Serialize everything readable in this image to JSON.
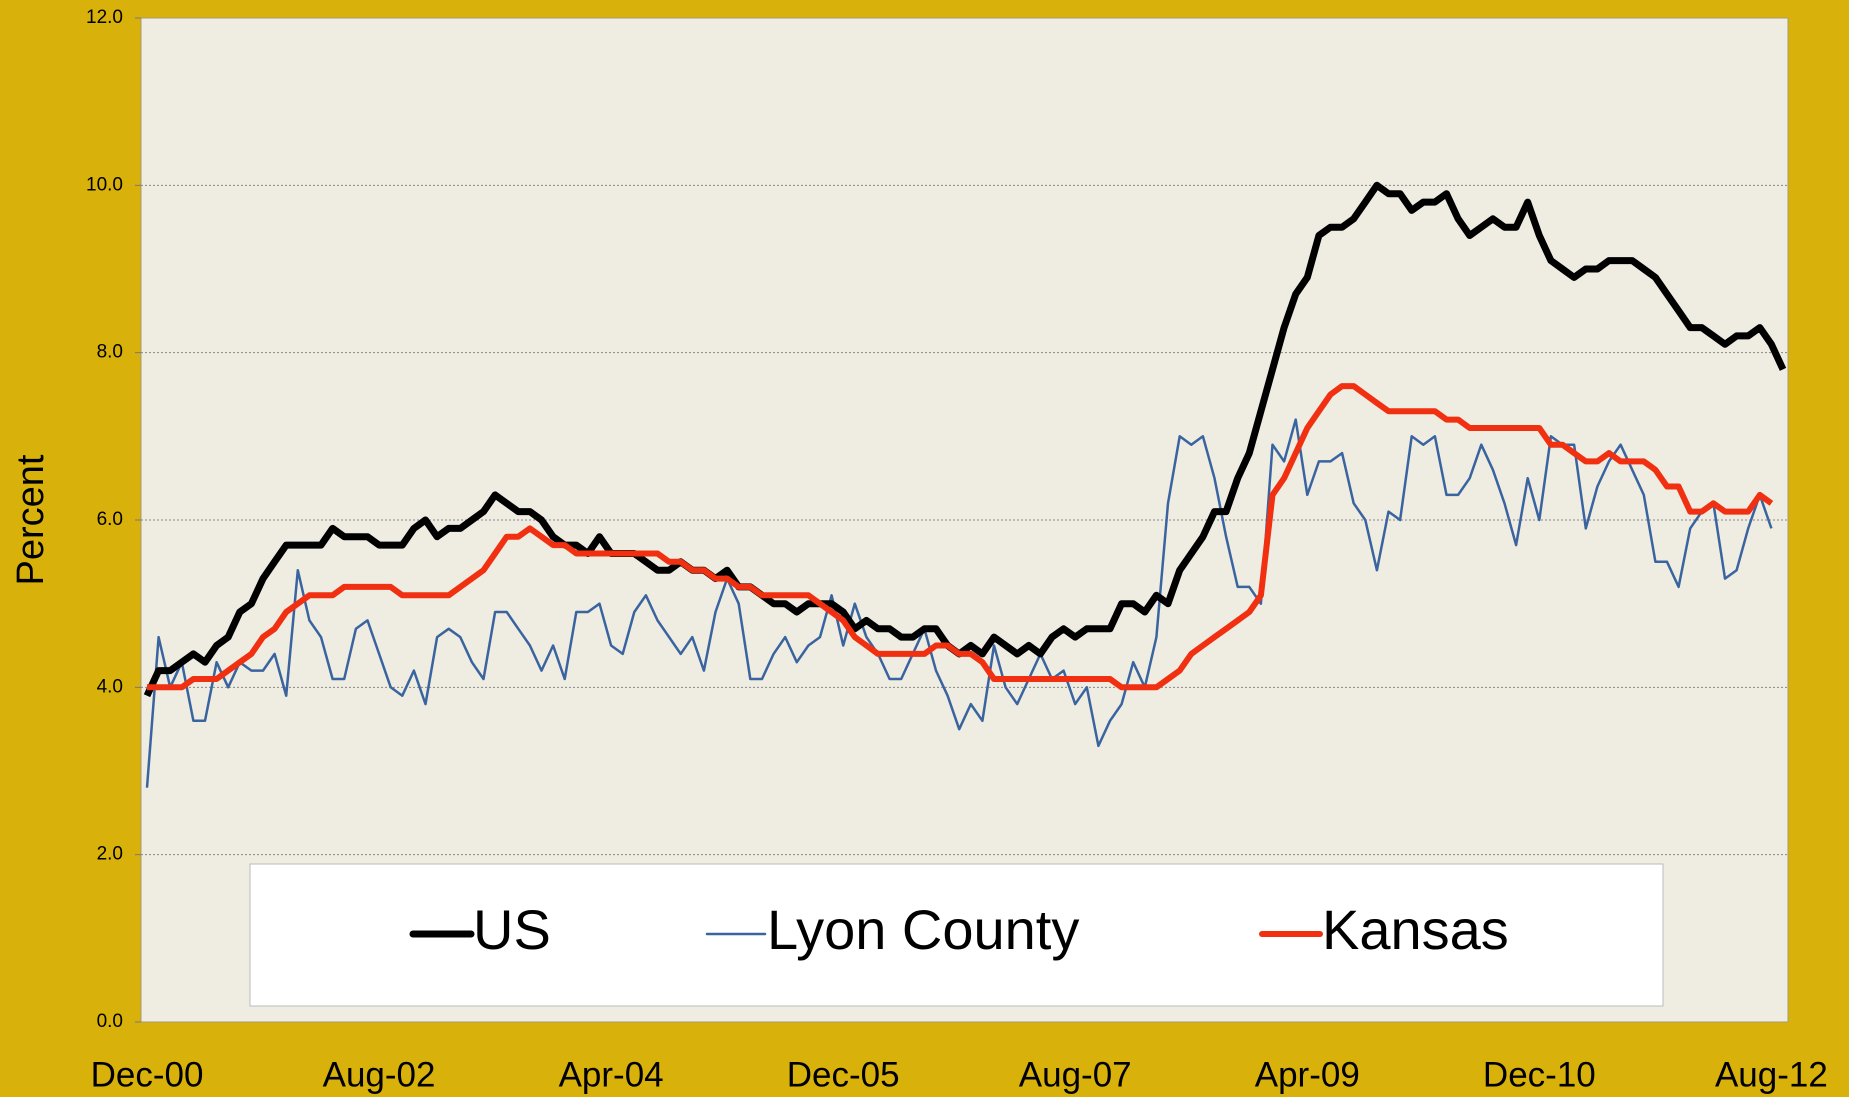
{
  "chart_data": {
    "type": "line",
    "ylabel": "Percent",
    "categories": [
      "Dec-00",
      null,
      null,
      null,
      null,
      null,
      null,
      null,
      null,
      null,
      null,
      null,
      null,
      null,
      null,
      null,
      null,
      null,
      null,
      null,
      "Aug-02",
      null,
      null,
      null,
      null,
      null,
      null,
      null,
      null,
      null,
      null,
      null,
      null,
      null,
      null,
      null,
      null,
      null,
      null,
      null,
      "Apr-04",
      null,
      null,
      null,
      null,
      null,
      null,
      null,
      null,
      null,
      null,
      null,
      null,
      null,
      null,
      null,
      null,
      null,
      null,
      null,
      "Dec-05",
      null,
      null,
      null,
      null,
      null,
      null,
      null,
      null,
      null,
      null,
      null,
      null,
      null,
      null,
      null,
      null,
      null,
      null,
      null,
      "Aug-07",
      null,
      null,
      null,
      null,
      null,
      null,
      null,
      null,
      null,
      null,
      null,
      null,
      null,
      null,
      null,
      null,
      null,
      null,
      null,
      "Apr-09",
      null,
      null,
      null,
      null,
      null,
      null,
      null,
      null,
      null,
      null,
      null,
      null,
      null,
      null,
      null,
      null,
      null,
      null,
      null,
      "Dec-10",
      null,
      null,
      null,
      null,
      null,
      null,
      null,
      null,
      null,
      null,
      null,
      null,
      null,
      null,
      null,
      null,
      null,
      null,
      null,
      "Aug-12",
      null
    ],
    "series": [
      {
        "name": "US",
        "color": "#000000",
        "width": 7,
        "values": [
          3.9,
          4.2,
          4.2,
          4.3,
          4.4,
          4.3,
          4.5,
          4.6,
          4.9,
          5.0,
          5.3,
          5.5,
          5.7,
          5.7,
          5.7,
          5.7,
          5.9,
          5.8,
          5.8,
          5.8,
          5.7,
          5.7,
          5.7,
          5.9,
          6.0,
          5.8,
          5.9,
          5.9,
          6.0,
          6.1,
          6.3,
          6.2,
          6.1,
          6.1,
          6.0,
          5.8,
          5.7,
          5.7,
          5.6,
          5.8,
          5.6,
          5.6,
          5.6,
          5.5,
          5.4,
          5.4,
          5.5,
          5.4,
          5.4,
          5.3,
          5.4,
          5.2,
          5.2,
          5.1,
          5.0,
          5.0,
          4.9,
          5.0,
          5.0,
          5.0,
          4.9,
          4.7,
          4.8,
          4.7,
          4.7,
          4.6,
          4.6,
          4.7,
          4.7,
          4.5,
          4.4,
          4.5,
          4.4,
          4.6,
          4.5,
          4.4,
          4.5,
          4.4,
          4.6,
          4.7,
          4.6,
          4.7,
          4.7,
          4.7,
          5.0,
          5.0,
          4.9,
          5.1,
          5.0,
          5.4,
          5.6,
          5.8,
          6.1,
          6.1,
          6.5,
          6.8,
          7.3,
          7.8,
          8.3,
          8.7,
          8.9,
          9.4,
          9.5,
          9.5,
          9.6,
          9.8,
          10.0,
          9.9,
          9.9,
          9.7,
          9.8,
          9.8,
          9.9,
          9.6,
          9.4,
          9.5,
          9.6,
          9.5,
          9.5,
          9.8,
          9.4,
          9.1,
          9.0,
          8.9,
          9.0,
          9.0,
          9.1,
          9.1,
          9.1,
          9.0,
          8.9,
          8.7,
          8.5,
          8.3,
          8.3,
          8.2,
          8.1,
          8.2,
          8.2,
          8.3,
          8.1,
          7.8
        ]
      },
      {
        "name": "Lyon County",
        "color": "#3a64a0",
        "width": 2.5,
        "values": [
          2.8,
          4.6,
          4.0,
          4.3,
          3.6,
          3.6,
          4.3,
          4.0,
          4.3,
          4.2,
          4.2,
          4.4,
          3.9,
          5.4,
          4.8,
          4.6,
          4.1,
          4.1,
          4.7,
          4.8,
          4.4,
          4.0,
          3.9,
          4.2,
          3.8,
          4.6,
          4.7,
          4.6,
          4.3,
          4.1,
          4.9,
          4.9,
          4.7,
          4.5,
          4.2,
          4.5,
          4.1,
          4.9,
          4.9,
          5.0,
          4.5,
          4.4,
          4.9,
          5.1,
          4.8,
          4.6,
          4.4,
          4.6,
          4.2,
          4.9,
          5.3,
          5.0,
          4.1,
          4.1,
          4.4,
          4.6,
          4.3,
          4.5,
          4.6,
          5.1,
          4.5,
          5.0,
          4.6,
          4.4,
          4.1,
          4.1,
          4.4,
          4.7,
          4.2,
          3.9,
          3.5,
          3.8,
          3.6,
          4.5,
          4.0,
          3.8,
          4.1,
          4.4,
          4.1,
          4.2,
          3.8,
          4.0,
          3.3,
          3.6,
          3.8,
          4.3,
          4.0,
          4.6,
          6.2,
          7.0,
          6.9,
          7.0,
          6.5,
          5.8,
          5.2,
          5.2,
          5.0,
          6.9,
          6.7,
          7.2,
          6.3,
          6.7,
          6.7,
          6.8,
          6.2,
          6.0,
          5.4,
          6.1,
          6.0,
          7.0,
          6.9,
          7.0,
          6.3,
          6.3,
          6.5,
          6.9,
          6.6,
          6.2,
          5.7,
          6.5,
          6.0,
          7.0,
          6.9,
          6.9,
          5.9,
          6.4,
          6.7,
          6.9,
          6.6,
          6.3,
          5.5,
          5.5,
          5.2,
          5.9,
          6.1,
          6.2,
          5.3,
          5.4,
          5.9,
          6.3,
          5.9,
          null
        ]
      },
      {
        "name": "Kansas",
        "color": "#f03010",
        "width": 6,
        "values": [
          4.0,
          4.0,
          4.0,
          4.0,
          4.1,
          4.1,
          4.1,
          4.2,
          4.3,
          4.4,
          4.6,
          4.7,
          4.9,
          5.0,
          5.1,
          5.1,
          5.1,
          5.2,
          5.2,
          5.2,
          5.2,
          5.2,
          5.1,
          5.1,
          5.1,
          5.1,
          5.1,
          5.2,
          5.3,
          5.4,
          5.6,
          5.8,
          5.8,
          5.9,
          5.8,
          5.7,
          5.7,
          5.6,
          5.6,
          5.6,
          5.6,
          5.6,
          5.6,
          5.6,
          5.6,
          5.5,
          5.5,
          5.4,
          5.4,
          5.3,
          5.3,
          5.2,
          5.2,
          5.1,
          5.1,
          5.1,
          5.1,
          5.1,
          5.0,
          4.9,
          4.8,
          4.6,
          4.5,
          4.4,
          4.4,
          4.4,
          4.4,
          4.4,
          4.5,
          4.5,
          4.4,
          4.4,
          4.3,
          4.1,
          4.1,
          4.1,
          4.1,
          4.1,
          4.1,
          4.1,
          4.1,
          4.1,
          4.1,
          4.1,
          4.0,
          4.0,
          4.0,
          4.0,
          4.1,
          4.2,
          4.4,
          4.5,
          4.6,
          4.7,
          4.8,
          4.9,
          5.1,
          6.3,
          6.5,
          6.8,
          7.1,
          7.3,
          7.5,
          7.6,
          7.6,
          7.5,
          7.4,
          7.3,
          7.3,
          7.3,
          7.3,
          7.3,
          7.2,
          7.2,
          7.1,
          7.1,
          7.1,
          7.1,
          7.1,
          7.1,
          7.1,
          6.9,
          6.9,
          6.8,
          6.7,
          6.7,
          6.8,
          6.7,
          6.7,
          6.7,
          6.6,
          6.4,
          6.4,
          6.1,
          6.1,
          6.2,
          6.1,
          6.1,
          6.1,
          6.3,
          6.2,
          null
        ]
      }
    ],
    "ylim": [
      0,
      12
    ],
    "yticks": [
      {
        "value": 0,
        "label": "0.0"
      },
      {
        "value": 2,
        "label": "2.0"
      },
      {
        "value": 4,
        "label": "4.0"
      },
      {
        "value": 6,
        "label": "6.0"
      },
      {
        "value": 8,
        "label": "8.0"
      },
      {
        "value": 10,
        "label": "10.0"
      },
      {
        "value": 12,
        "label": "12.0"
      }
    ],
    "grid": true
  }
}
